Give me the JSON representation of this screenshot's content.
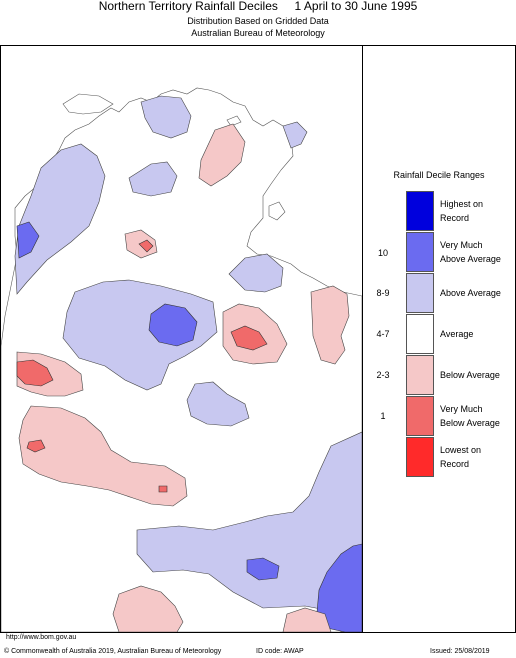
{
  "header": {
    "title_left": "Northern Territory Rainfall Deciles",
    "title_right": "1 April to 30 June 1995",
    "subtitle_1": "Distribution Based on Gridded Data",
    "subtitle_2": "Australian Bureau of Meteorology"
  },
  "legend": {
    "title": "Rainfall Decile Ranges",
    "items": [
      {
        "range": "",
        "label_1": "Highest on",
        "label_2": "Record",
        "color": "#0000dd"
      },
      {
        "range": "10",
        "label_1": "Very Much",
        "label_2": "Above Average",
        "color": "#6b6bf0"
      },
      {
        "range": "8-9",
        "label_1": "Above Average",
        "label_2": "",
        "color": "#c8c8f0"
      },
      {
        "range": "4-7",
        "label_1": "Average",
        "label_2": "",
        "color": "#ffffff"
      },
      {
        "range": "2-3",
        "label_1": "Below Average",
        "label_2": "",
        "color": "#f5c8c8"
      },
      {
        "range": "1",
        "label_1": "Very Much",
        "label_2": "Below Average",
        "color": "#f06a6a"
      },
      {
        "range": "",
        "label_1": "Lowest on",
        "label_2": "Record",
        "color": "#ff2a2a"
      }
    ]
  },
  "footer": {
    "url": "http://www.bom.gov.au",
    "copyright": "© Commonwealth of Australia 2019, Australian Bureau of Meteorology",
    "id_code": "ID code: AWAP",
    "issued": "Issued: 25/08/2019"
  }
}
